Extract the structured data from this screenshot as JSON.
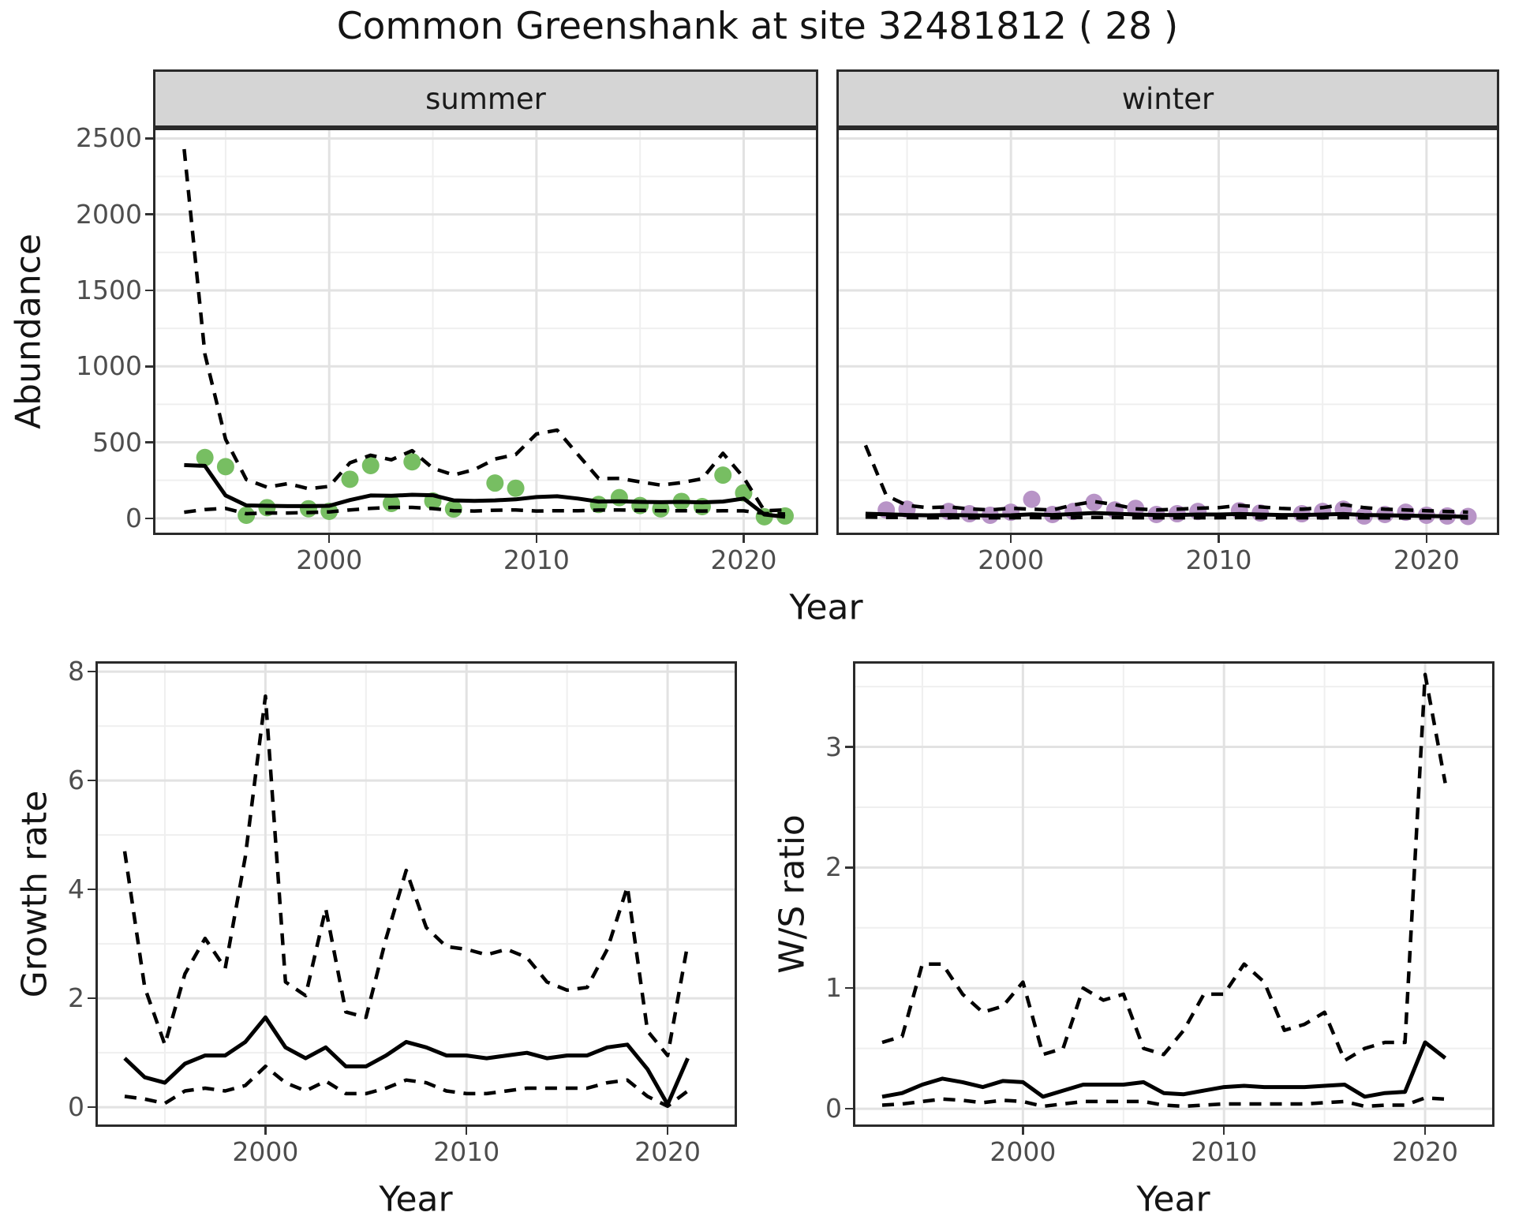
{
  "title": "Common Greenshank at site 32481812 ( 28 )",
  "top_row": {
    "facets": [
      "summer",
      "winter"
    ],
    "ylabel": "Abundance",
    "xlabel": "Year"
  },
  "colors": {
    "summer_point": "#77BE62",
    "winter_point": "#B894C7",
    "line": "#000000",
    "grid_major": "#E2E2E2",
    "grid_minor": "#EFEFEF",
    "strip_bg": "#D5D5D5",
    "panel_border": "#2A2A2A",
    "axis_text": "#4D4D4D",
    "title_text": "#141414"
  },
  "chart_data": [
    {
      "id": "abundance-summer",
      "type": "line",
      "title_strip": "summer",
      "xlabel": "Year",
      "ylabel": "Abundance",
      "xlim": [
        1991.5,
        2023.6
      ],
      "ylim": [
        -110,
        2570
      ],
      "x_tick_values": [
        2000,
        2010,
        2020
      ],
      "x_tick_labels": [
        "2000",
        "2010",
        "2020"
      ],
      "x_minor": [
        1995,
        2005,
        2015
      ],
      "y_tick_values": [
        0,
        500,
        1000,
        1500,
        2000,
        2500
      ],
      "y_tick_labels": [
        "0",
        "500",
        "1000",
        "1500",
        "2000",
        "2500"
      ],
      "y_minor": [
        250,
        750,
        1250,
        1750,
        2250
      ],
      "series": [
        {
          "name": "observed_counts",
          "kind": "points",
          "color_key": "summer_point",
          "x": [
            1994,
            1995,
            1996,
            1997,
            1999,
            2000,
            2001,
            2002,
            2003,
            2004,
            2005,
            2006,
            2008,
            2009,
            2013,
            2014,
            2015,
            2016,
            2017,
            2018,
            2019,
            2020,
            2021,
            2022
          ],
          "y": [
            400,
            340,
            20,
            70,
            63,
            46,
            257,
            347,
            98,
            372,
            114,
            61,
            232,
            198,
            91,
            136,
            84,
            62,
            111,
            77,
            284,
            167,
            10,
            15
          ]
        },
        {
          "name": "upper_95ci",
          "kind": "line",
          "dash": true,
          "x": [
            1993,
            1994,
            1995,
            1996,
            1997,
            1998,
            1999,
            2000,
            2001,
            2002,
            2003,
            2004,
            2005,
            2006,
            2007,
            2008,
            2009,
            2010,
            2011,
            2012,
            2013,
            2014,
            2015,
            2016,
            2017,
            2018,
            2019,
            2020,
            2021,
            2022
          ],
          "y": [
            2430,
            1080,
            520,
            255,
            205,
            228,
            195,
            210,
            365,
            415,
            385,
            445,
            330,
            285,
            320,
            390,
            420,
            555,
            580,
            420,
            262,
            263,
            240,
            218,
            235,
            260,
            428,
            268,
            50,
            55
          ]
        },
        {
          "name": "median_fit",
          "kind": "line",
          "dash": false,
          "x": [
            1993,
            1994,
            1995,
            1996,
            1997,
            1998,
            1999,
            2000,
            2001,
            2002,
            2003,
            2004,
            2005,
            2006,
            2007,
            2008,
            2009,
            2010,
            2011,
            2012,
            2013,
            2014,
            2015,
            2016,
            2017,
            2018,
            2019,
            2020,
            2021,
            2022
          ],
          "y": [
            350,
            345,
            150,
            85,
            82,
            80,
            80,
            82,
            120,
            150,
            148,
            155,
            152,
            118,
            115,
            118,
            125,
            140,
            145,
            130,
            110,
            112,
            108,
            106,
            108,
            105,
            110,
            130,
            25,
            10
          ]
        },
        {
          "name": "lower_95ci",
          "kind": "line",
          "dash": true,
          "x": [
            1993,
            1994,
            1995,
            1996,
            1997,
            1998,
            1999,
            2000,
            2001,
            2002,
            2003,
            2004,
            2005,
            2006,
            2007,
            2008,
            2009,
            2010,
            2011,
            2012,
            2013,
            2014,
            2015,
            2016,
            2017,
            2018,
            2019,
            2020,
            2021,
            2022
          ],
          "y": [
            40,
            58,
            65,
            30,
            35,
            35,
            38,
            42,
            55,
            65,
            72,
            72,
            64,
            50,
            48,
            53,
            55,
            48,
            50,
            50,
            54,
            55,
            52,
            50,
            50,
            48,
            50,
            49,
            32,
            28
          ]
        }
      ]
    },
    {
      "id": "abundance-winter",
      "type": "line",
      "title_strip": "winter",
      "xlabel": "Year",
      "ylabel": "Abundance",
      "xlim": [
        1991.6,
        2023.5
      ],
      "ylim": [
        -110,
        2570
      ],
      "x_tick_values": [
        2000,
        2010,
        2020
      ],
      "x_tick_labels": [
        "2000",
        "2010",
        "2020"
      ],
      "x_minor": [
        1995,
        2005,
        2015
      ],
      "y_tick_values": [
        0,
        500,
        1000,
        1500,
        2000,
        2500
      ],
      "y_tick_labels": [
        "0",
        "500",
        "1000",
        "1500",
        "2000",
        "2500"
      ],
      "y_minor": [
        250,
        750,
        1250,
        1750,
        2250
      ],
      "series": [
        {
          "name": "observed_counts",
          "kind": "points",
          "color_key": "winter_point",
          "x": [
            1994,
            1995,
            1997,
            1998,
            1999,
            2000,
            2001,
            2002,
            2003,
            2004,
            2005,
            2006,
            2007,
            2008,
            2009,
            2011,
            2012,
            2014,
            2015,
            2016,
            2017,
            2018,
            2019,
            2020,
            2021,
            2022
          ],
          "y": [
            55,
            60,
            45,
            30,
            20,
            40,
            125,
            25,
            45,
            105,
            55,
            65,
            25,
            30,
            45,
            50,
            35,
            30,
            45,
            60,
            15,
            25,
            40,
            20,
            15,
            12
          ]
        },
        {
          "name": "upper_95ci",
          "kind": "line",
          "dash": true,
          "x": [
            1993,
            1994,
            1995,
            1996,
            1997,
            1998,
            1999,
            2000,
            2001,
            2002,
            2003,
            2004,
            2005,
            2006,
            2007,
            2008,
            2009,
            2010,
            2011,
            2012,
            2013,
            2014,
            2015,
            2016,
            2017,
            2018,
            2019,
            2020,
            2021,
            2022
          ],
          "y": [
            480,
            150,
            85,
            70,
            75,
            62,
            55,
            66,
            60,
            55,
            88,
            110,
            90,
            62,
            55,
            60,
            66,
            70,
            85,
            75,
            65,
            60,
            70,
            90,
            70,
            60,
            55,
            50,
            45,
            40
          ]
        },
        {
          "name": "median_fit",
          "kind": "line",
          "dash": false,
          "x": [
            1993,
            1994,
            1995,
            1996,
            1997,
            1998,
            1999,
            2000,
            2001,
            2002,
            2003,
            2004,
            2005,
            2006,
            2007,
            2008,
            2009,
            2010,
            2011,
            2012,
            2013,
            2014,
            2015,
            2016,
            2017,
            2018,
            2019,
            2020,
            2021,
            2022
          ],
          "y": [
            30,
            26,
            22,
            20,
            22,
            20,
            18,
            20,
            26,
            22,
            28,
            35,
            30,
            25,
            22,
            22,
            25,
            25,
            28,
            25,
            22,
            22,
            25,
            28,
            22,
            20,
            18,
            15,
            13,
            10
          ]
        },
        {
          "name": "lower_95ci",
          "kind": "line",
          "dash": true,
          "x": [
            1993,
            1994,
            1995,
            1996,
            1997,
            1998,
            1999,
            2000,
            2001,
            2002,
            2003,
            2004,
            2005,
            2006,
            2007,
            2008,
            2009,
            2010,
            2011,
            2012,
            2013,
            2014,
            2015,
            2016,
            2017,
            2018,
            2019,
            2020,
            2021,
            2022
          ],
          "y": [
            8,
            6,
            5,
            4,
            5,
            4,
            4,
            4,
            5,
            4,
            5,
            6,
            5,
            4,
            4,
            4,
            4,
            4,
            5,
            4,
            4,
            4,
            4,
            5,
            4,
            3,
            3,
            3,
            2,
            2
          ]
        }
      ]
    },
    {
      "id": "growth-rate",
      "type": "line",
      "xlabel": "Year",
      "ylabel": "Growth rate",
      "xlim": [
        1991.55,
        2023.45
      ],
      "ylim": [
        -0.36,
        8.19
      ],
      "x_tick_values": [
        2000,
        2010,
        2020
      ],
      "x_tick_labels": [
        "2000",
        "2010",
        "2020"
      ],
      "x_minor": [
        1995,
        2005,
        2015
      ],
      "y_tick_values": [
        0,
        2,
        4,
        6,
        8
      ],
      "y_tick_labels": [
        "0",
        "2",
        "4",
        "6",
        "8"
      ],
      "y_minor": [
        1,
        3,
        5,
        7
      ],
      "series": [
        {
          "name": "upper_95ci",
          "kind": "line",
          "dash": true,
          "x": [
            1993,
            1994,
            1995,
            1996,
            1997,
            1998,
            1999,
            2000,
            2001,
            2002,
            2003,
            2004,
            2005,
            2006,
            2007,
            2008,
            2009,
            2010,
            2011,
            2012,
            2013,
            2014,
            2015,
            2016,
            2017,
            2018,
            2019,
            2020,
            2021
          ],
          "y": [
            4.7,
            2.2,
            1.15,
            2.45,
            3.1,
            2.55,
            4.6,
            7.55,
            2.3,
            2.05,
            3.65,
            1.75,
            1.65,
            3.1,
            4.35,
            3.3,
            2.95,
            2.9,
            2.8,
            2.9,
            2.75,
            2.3,
            2.15,
            2.2,
            2.9,
            4.05,
            1.4,
            0.95,
            3.0
          ]
        },
        {
          "name": "median_fit",
          "kind": "line",
          "dash": false,
          "x": [
            1993,
            1994,
            1995,
            1996,
            1997,
            1998,
            1999,
            2000,
            2001,
            2002,
            2003,
            2004,
            2005,
            2006,
            2007,
            2008,
            2009,
            2010,
            2011,
            2012,
            2013,
            2014,
            2015,
            2016,
            2017,
            2018,
            2019,
            2020,
            2021
          ],
          "y": [
            0.9,
            0.55,
            0.45,
            0.8,
            0.95,
            0.95,
            1.2,
            1.65,
            1.1,
            0.9,
            1.1,
            0.75,
            0.75,
            0.95,
            1.2,
            1.1,
            0.95,
            0.95,
            0.9,
            0.95,
            1.0,
            0.9,
            0.95,
            0.95,
            1.1,
            1.15,
            0.7,
            0.05,
            0.9
          ]
        },
        {
          "name": "lower_95ci",
          "kind": "line",
          "dash": true,
          "x": [
            1993,
            1994,
            1995,
            1996,
            1997,
            1998,
            1999,
            2000,
            2001,
            2002,
            2003,
            2004,
            2005,
            2006,
            2007,
            2008,
            2009,
            2010,
            2011,
            2012,
            2013,
            2014,
            2015,
            2016,
            2017,
            2018,
            2019,
            2020,
            2021
          ],
          "y": [
            0.2,
            0.15,
            0.07,
            0.3,
            0.35,
            0.3,
            0.4,
            0.75,
            0.45,
            0.3,
            0.48,
            0.25,
            0.25,
            0.35,
            0.5,
            0.45,
            0.3,
            0.25,
            0.25,
            0.3,
            0.35,
            0.35,
            0.35,
            0.35,
            0.45,
            0.5,
            0.2,
            0.02,
            0.3
          ]
        }
      ]
    },
    {
      "id": "ws-ratio",
      "type": "line",
      "xlabel": "Year",
      "ylabel": "W/S ratio",
      "xlim": [
        1991.55,
        2023.45
      ],
      "ylim": [
        -0.15,
        3.71
      ],
      "x_tick_values": [
        2000,
        2010,
        2020
      ],
      "x_tick_labels": [
        "2000",
        "2010",
        "2020"
      ],
      "x_minor": [
        1995,
        2005,
        2015
      ],
      "y_tick_values": [
        0,
        1,
        2,
        3
      ],
      "y_tick_labels": [
        "0",
        "1",
        "2",
        "3"
      ],
      "y_minor": [
        0.5,
        1.5,
        2.5,
        3.5
      ],
      "series": [
        {
          "name": "upper_95ci",
          "kind": "line",
          "dash": true,
          "x": [
            1993,
            1994,
            1995,
            1996,
            1997,
            1998,
            1999,
            2000,
            2001,
            2002,
            2003,
            2004,
            2005,
            2006,
            2007,
            2008,
            2009,
            2010,
            2011,
            2012,
            2013,
            2014,
            2015,
            2016,
            2017,
            2018,
            2019,
            2020,
            2021
          ],
          "y": [
            0.55,
            0.6,
            1.2,
            1.2,
            0.95,
            0.8,
            0.85,
            1.05,
            0.45,
            0.5,
            1.0,
            0.9,
            0.95,
            0.5,
            0.45,
            0.65,
            0.95,
            0.95,
            1.2,
            1.05,
            0.65,
            0.7,
            0.8,
            0.4,
            0.5,
            0.55,
            0.55,
            3.6,
            2.7
          ]
        },
        {
          "name": "median_fit",
          "kind": "line",
          "dash": false,
          "x": [
            1993,
            1994,
            1995,
            1996,
            1997,
            1998,
            1999,
            2000,
            2001,
            2002,
            2003,
            2004,
            2005,
            2006,
            2007,
            2008,
            2009,
            2010,
            2011,
            2012,
            2013,
            2014,
            2015,
            2016,
            2017,
            2018,
            2019,
            2020,
            2021
          ],
          "y": [
            0.1,
            0.13,
            0.2,
            0.25,
            0.22,
            0.18,
            0.23,
            0.22,
            0.1,
            0.15,
            0.2,
            0.2,
            0.2,
            0.22,
            0.13,
            0.12,
            0.15,
            0.18,
            0.19,
            0.18,
            0.18,
            0.18,
            0.19,
            0.2,
            0.1,
            0.13,
            0.14,
            0.55,
            0.42
          ]
        },
        {
          "name": "lower_95ci",
          "kind": "line",
          "dash": true,
          "x": [
            1993,
            1994,
            1995,
            1996,
            1997,
            1998,
            1999,
            2000,
            2001,
            2002,
            2003,
            2004,
            2005,
            2006,
            2007,
            2008,
            2009,
            2010,
            2011,
            2012,
            2013,
            2014,
            2015,
            2016,
            2017,
            2018,
            2019,
            2020,
            2021
          ],
          "y": [
            0.03,
            0.04,
            0.06,
            0.08,
            0.07,
            0.05,
            0.07,
            0.06,
            0.02,
            0.04,
            0.06,
            0.06,
            0.06,
            0.06,
            0.03,
            0.02,
            0.03,
            0.04,
            0.04,
            0.04,
            0.04,
            0.04,
            0.05,
            0.06,
            0.02,
            0.03,
            0.03,
            0.09,
            0.08
          ]
        }
      ]
    }
  ]
}
